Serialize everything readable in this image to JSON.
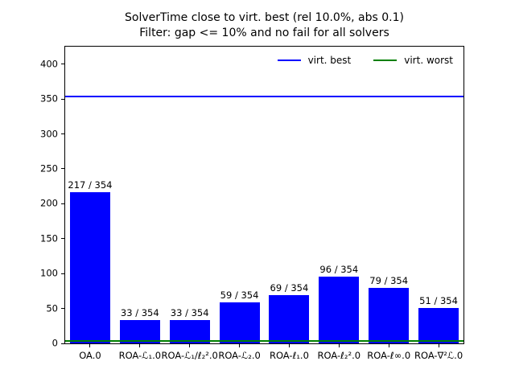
{
  "chart_data": {
    "type": "bar",
    "title": "SolverTime close to virt. best (rel 10.0%, abs 0.1)",
    "subtitle": "Filter: gap <= 10% and no fail for all solvers",
    "categories": [
      "OA.0",
      "ROA-ℒ₁.0",
      "ROA-ℒ₁/ℓ₂².0",
      "ROA-ℒ₂.0",
      "ROA-ℓ₁.0",
      "ROA-ℓ₂².0",
      "ROA-ℓ∞.0",
      "ROA-∇²ℒ.0"
    ],
    "values": [
      217,
      33,
      33,
      59,
      69,
      96,
      79,
      51
    ],
    "denominator": 354,
    "bar_labels": [
      "217 / 354",
      "33 / 354",
      "33 / 354",
      "59 / 354",
      "69 / 354",
      "96 / 354",
      "79 / 354",
      "51 / 354"
    ],
    "bar_color": "#0000ff",
    "hlines": [
      {
        "name": "virt-best-line",
        "value": 354,
        "color": "#0000ff"
      },
      {
        "name": "virt-worst-line",
        "value": 4,
        "color": "#008000"
      }
    ],
    "legend": {
      "position": "upper right",
      "entries": [
        {
          "label": "virt. best",
          "color": "#0000ff"
        },
        {
          "label": "virt. worst",
          "color": "#008000"
        }
      ]
    },
    "xlabel": "",
    "ylabel": "",
    "ylim": [
      0,
      425
    ],
    "yticks": [
      0,
      50,
      100,
      150,
      200,
      250,
      300,
      350,
      400
    ],
    "grid": false,
    "background": "#ffffff",
    "text_color": "#000000"
  }
}
